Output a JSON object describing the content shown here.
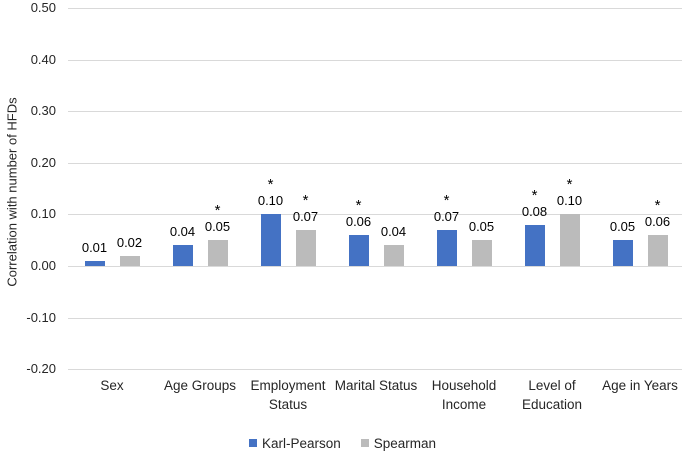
{
  "chart_data": {
    "type": "bar",
    "title": "",
    "xlabel": "",
    "ylabel": "Correlation with number of HFDs",
    "categories": [
      "Sex",
      "Age Groups",
      "Employment Status",
      "Marital Status",
      "Household Income",
      "Level of Education",
      "Age in Years"
    ],
    "series": [
      {
        "name": "Karl-Pearson",
        "color": "#4472C4",
        "values": [
          0.01,
          0.04,
          0.1,
          0.06,
          0.07,
          0.08,
          0.05
        ],
        "significant": [
          false,
          false,
          true,
          true,
          true,
          true,
          false
        ]
      },
      {
        "name": "Spearman",
        "color": "#BBBBBB",
        "values": [
          0.02,
          0.05,
          0.07,
          0.04,
          0.05,
          0.1,
          0.06
        ],
        "significant": [
          false,
          true,
          true,
          false,
          false,
          true,
          true
        ]
      }
    ],
    "ylim": [
      -0.2,
      0.5
    ],
    "yticks": [
      0.5,
      0.4,
      0.3,
      0.2,
      0.1,
      0.0,
      -0.1,
      -0.2
    ],
    "significance_marker": "*",
    "value_label_decimals": 2,
    "grid": true,
    "legend_position": "bottom",
    "colors": {
      "background": "#ffffff",
      "gridline": "#d9d9d9",
      "axis_text": "#262626",
      "data_label": "#000000"
    }
  }
}
